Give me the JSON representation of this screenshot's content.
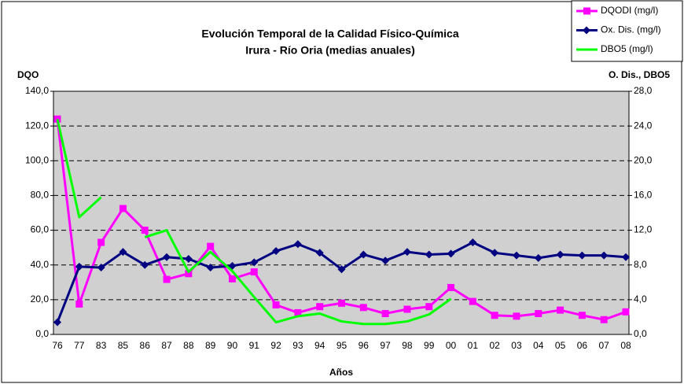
{
  "chart_data": {
    "type": "line",
    "title": "Evolución Temporal de la Calidad Físico-Química",
    "subtitle": "Irura - Río Oria (medias anuales)",
    "y_label": "DQO",
    "y2_label": "O. Dis., DBO5",
    "x_label": "Años",
    "categories": [
      "76",
      "77",
      "83",
      "85",
      "86",
      "87",
      "88",
      "89",
      "90",
      "91",
      "92",
      "93",
      "94",
      "95",
      "96",
      "97",
      "98",
      "99",
      "00",
      "01",
      "02",
      "03",
      "04",
      "05",
      "06",
      "07",
      "08"
    ],
    "series": [
      {
        "name": "DQODI (mg/l)",
        "color": "#ff00ff",
        "marker": "square",
        "axis": "y",
        "values": [
          124,
          17.5,
          53,
          72.5,
          60,
          31.7,
          35,
          50.7,
          32,
          36,
          17,
          12.5,
          16,
          18,
          15.5,
          12,
          14.5,
          16,
          27,
          19,
          11,
          10.5,
          12,
          14,
          11,
          8.5,
          13
        ]
      },
      {
        "name": "Ox. Dis. (mg/l)",
        "color": "#000080",
        "marker": "diamond",
        "axis": "y2",
        "values": [
          1.4,
          7.8,
          7.7,
          9.5,
          8.0,
          8.9,
          8.7,
          7.7,
          7.9,
          8.3,
          9.6,
          10.4,
          9.4,
          7.5,
          9.2,
          8.5,
          9.5,
          9.2,
          9.3,
          10.6,
          9.4,
          9.1,
          8.8,
          9.2,
          9.1,
          9.1,
          8.9
        ]
      },
      {
        "name": "DBO5 (mg/l)",
        "color": "#00ff00",
        "marker": "none",
        "axis": "y2",
        "values": [
          24.8,
          13.5,
          15.8,
          null,
          11.2,
          12.0,
          7.2,
          9.5,
          7.3,
          4.3,
          1.4,
          2.1,
          2.4,
          1.5,
          1.2,
          1.2,
          1.5,
          2.3,
          4.1,
          null,
          null,
          null,
          null,
          null,
          null,
          null,
          null
        ]
      }
    ],
    "ylim": [
      0,
      140
    ],
    "yticks": [
      {
        "value": 0,
        "label": "0,0"
      },
      {
        "value": 20,
        "label": "20,0"
      },
      {
        "value": 40,
        "label": "40,0"
      },
      {
        "value": 60,
        "label": "60,0"
      },
      {
        "value": 80,
        "label": "80,0"
      },
      {
        "value": 100,
        "label": "100,0"
      },
      {
        "value": 120,
        "label": "120,0"
      },
      {
        "value": 140,
        "label": "140,0"
      }
    ],
    "y2lim": [
      0,
      28
    ],
    "y2ticks": [
      {
        "value": 0,
        "label": "0,0"
      },
      {
        "value": 4,
        "label": "4,0"
      },
      {
        "value": 8,
        "label": "8,0"
      },
      {
        "value": 12,
        "label": "12,0"
      },
      {
        "value": 16,
        "label": "16,0"
      },
      {
        "value": 20,
        "label": "20,0"
      },
      {
        "value": 24,
        "label": "24,0"
      },
      {
        "value": 28,
        "label": "28,0"
      }
    ],
    "grid": true,
    "legend": "top-right"
  }
}
